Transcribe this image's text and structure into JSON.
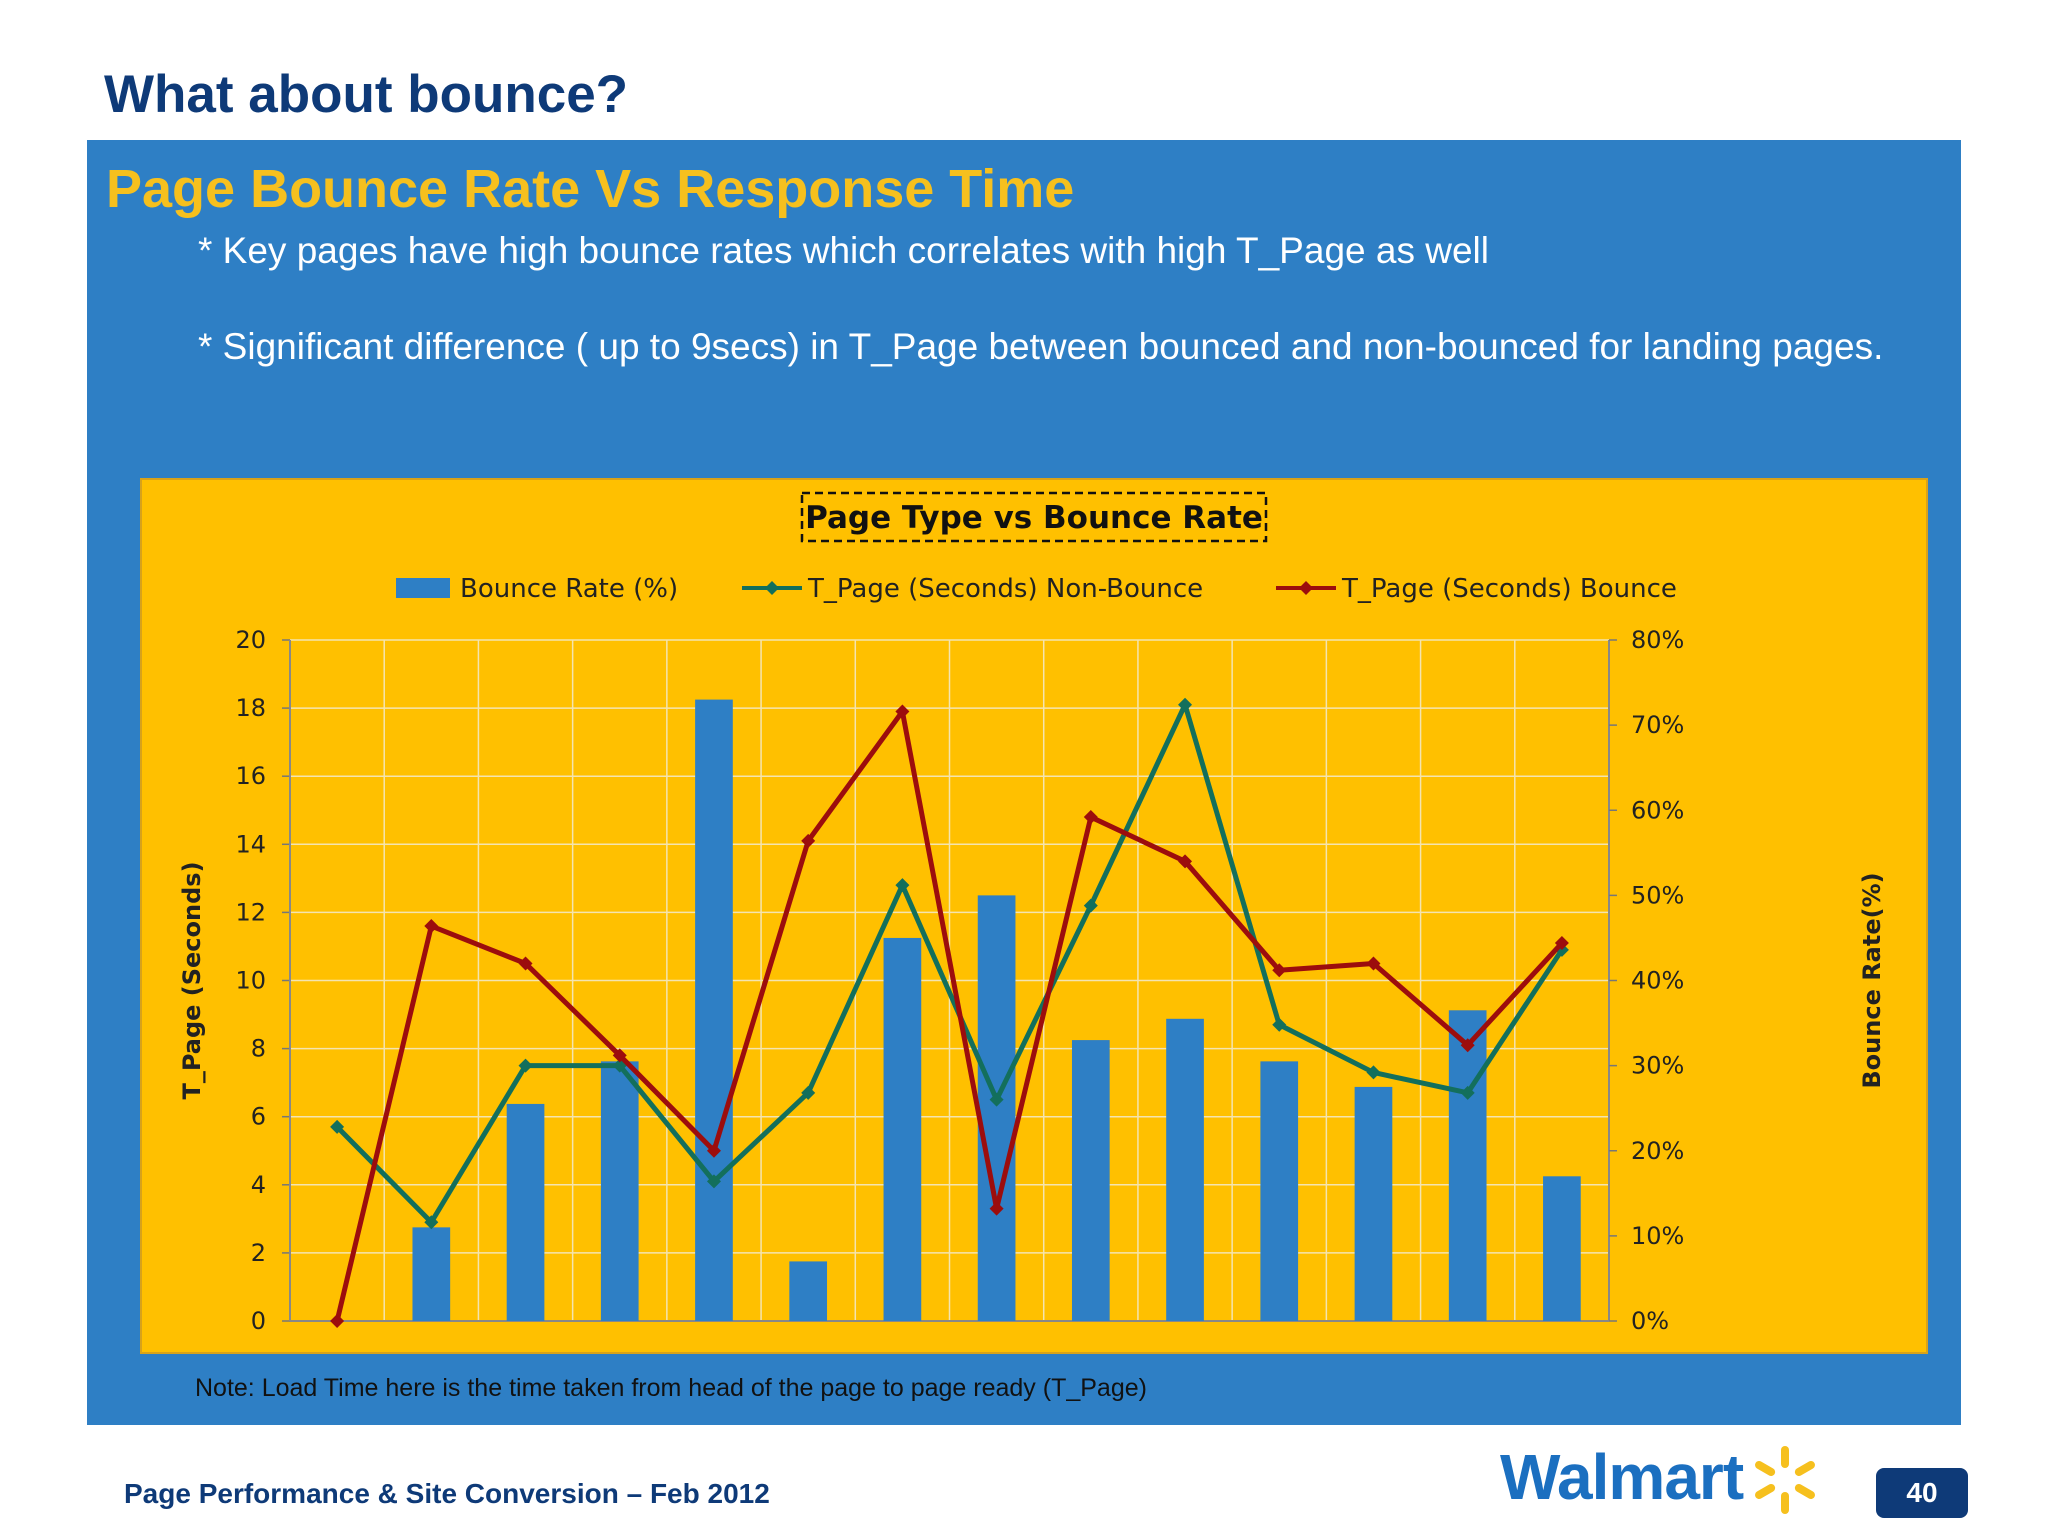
{
  "slide": {
    "title": "What about bounce?",
    "panel_title": "Page Bounce Rate Vs Response Time",
    "bullets": [
      "* Key pages have high bounce rates which correlates with high T_Page as well",
      "* Significant difference ( up to 9secs) in T_Page between bounced and non-bounced for landing pages."
    ],
    "note": "Note: Load Time here is the time taken from head of the page to page ready (T_Page)",
    "footer": "Page Performance & Site Conversion – Feb 2012",
    "logo_text": "Walmart",
    "page_number": "40"
  },
  "colors": {
    "panel": "#2e7fc5",
    "chart_bg": "#ffc000",
    "bar": "#2e7fc5",
    "non_bounce": "#136f5c",
    "bounce": "#9c0d0d",
    "title_dark": "#0e3a78",
    "accent_yellow": "#f6c01e"
  },
  "chart_data": {
    "type": "bar",
    "title": "Page Type vs Bounce Rate",
    "ylabel_left": "T_Page (Seconds)",
    "ylabel_right": "Bounce Rate(%)",
    "ylim_left": [
      0,
      20
    ],
    "yticks_left": [
      "0",
      "2",
      "4",
      "6",
      "8",
      "10",
      "12",
      "14",
      "16",
      "18",
      "20"
    ],
    "ylim_right": [
      0,
      80
    ],
    "yticks_right": [
      "0%",
      "10%",
      "20%",
      "30%",
      "40%",
      "50%",
      "60%",
      "70%",
      "80%"
    ],
    "grid": true,
    "legend": "top-center",
    "categories": [
      "",
      "",
      "",
      "",
      "",
      "",
      "",
      "",
      "",
      "",
      "",
      "",
      "",
      ""
    ],
    "series": [
      {
        "name": "Bounce Rate (%)",
        "type": "bar",
        "axis": "right",
        "values": [
          0,
          11,
          25.5,
          30.5,
          73,
          7,
          45,
          50,
          33,
          35.5,
          30.5,
          27.5,
          36.5,
          17
        ]
      },
      {
        "name": "T_Page (Seconds) Non-Bounce",
        "type": "line",
        "axis": "left",
        "values": [
          5.7,
          2.9,
          7.5,
          7.5,
          4.1,
          6.7,
          12.8,
          6.5,
          12.2,
          18.1,
          8.7,
          7.3,
          6.7,
          10.9
        ]
      },
      {
        "name": "T_Page (Seconds) Bounce",
        "type": "line",
        "axis": "left",
        "values": [
          0,
          11.6,
          10.5,
          7.8,
          5.0,
          14.1,
          17.9,
          3.3,
          14.8,
          13.5,
          10.3,
          10.5,
          8.1,
          11.1
        ]
      }
    ]
  }
}
